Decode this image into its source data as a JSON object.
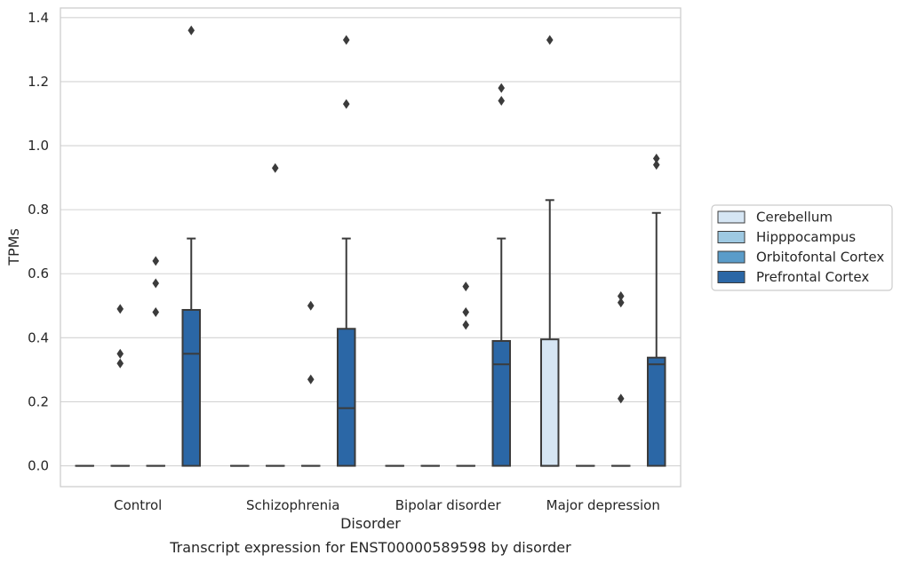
{
  "caption": "Transcript expression for ENST00000589598 by disorder",
  "chart_data": {
    "type": "box",
    "xlabel": "Disorder",
    "ylabel": "TPMs",
    "ylim": [
      -0.065,
      1.43
    ],
    "yticks": [
      "0.0",
      "0.2",
      "0.4",
      "0.6",
      "0.8",
      "1.0",
      "1.2",
      "1.4"
    ],
    "grid": "horizontal",
    "legend_position": "right",
    "categories": [
      "Control",
      "Schizophrenia",
      "Bipolar disorder",
      "Major depression"
    ],
    "series": [
      {
        "name": "Cerebellum",
        "color": "#d6e6f4",
        "boxes": [
          {
            "q1": 0,
            "median": 0,
            "q3": 0,
            "whisker_low": 0,
            "whisker_high": 0,
            "outliers": []
          },
          {
            "q1": 0,
            "median": 0,
            "q3": 0,
            "whisker_low": 0,
            "whisker_high": 0,
            "outliers": []
          },
          {
            "q1": 0,
            "median": 0,
            "q3": 0,
            "whisker_low": 0,
            "whisker_high": 0,
            "outliers": []
          },
          {
            "q1": 0,
            "median": 0,
            "q3": 0.395,
            "whisker_low": 0,
            "whisker_high": 0.83,
            "outliers": [
              1.33
            ]
          }
        ]
      },
      {
        "name": "Hipppocampus",
        "color": "#9ec9e2",
        "boxes": [
          {
            "q1": 0,
            "median": 0,
            "q3": 0,
            "whisker_low": 0,
            "whisker_high": 0,
            "outliers": [
              0.32,
              0.35,
              0.49
            ]
          },
          {
            "q1": 0,
            "median": 0,
            "q3": 0,
            "whisker_low": 0,
            "whisker_high": 0,
            "outliers": [
              0.93
            ]
          },
          {
            "q1": 0,
            "median": 0,
            "q3": 0,
            "whisker_low": 0,
            "whisker_high": 0,
            "outliers": []
          },
          {
            "q1": 0,
            "median": 0,
            "q3": 0,
            "whisker_low": 0,
            "whisker_high": 0,
            "outliers": []
          }
        ]
      },
      {
        "name": "Orbitofontal Cortex",
        "color": "#5a9cc9",
        "boxes": [
          {
            "q1": 0,
            "median": 0,
            "q3": 0,
            "whisker_low": 0,
            "whisker_high": 0,
            "outliers": [
              0.48,
              0.57,
              0.64
            ]
          },
          {
            "q1": 0,
            "median": 0,
            "q3": 0,
            "whisker_low": 0,
            "whisker_high": 0,
            "outliers": [
              0.27,
              0.5
            ]
          },
          {
            "q1": 0,
            "median": 0,
            "q3": 0,
            "whisker_low": 0,
            "whisker_high": 0,
            "outliers": [
              0.44,
              0.48,
              0.56
            ]
          },
          {
            "q1": 0,
            "median": 0,
            "q3": 0,
            "whisker_low": 0,
            "whisker_high": 0,
            "outliers": [
              0.51,
              0.21,
              0.53
            ]
          }
        ]
      },
      {
        "name": "Prefrontal Cortex",
        "color": "#2b67a6",
        "boxes": [
          {
            "q1": 0,
            "median": 0.35,
            "q3": 0.487,
            "whisker_low": 0,
            "whisker_high": 0.71,
            "outliers": [
              1.36
            ]
          },
          {
            "q1": 0,
            "median": 0.18,
            "q3": 0.428,
            "whisker_low": 0,
            "whisker_high": 0.71,
            "outliers": [
              1.13,
              1.33
            ]
          },
          {
            "q1": 0,
            "median": 0.317,
            "q3": 0.39,
            "whisker_low": 0,
            "whisker_high": 0.71,
            "outliers": [
              1.14,
              1.18
            ]
          },
          {
            "q1": 0,
            "median": 0.317,
            "q3": 0.338,
            "whisker_low": 0,
            "whisker_high": 0.79,
            "outliers": [
              0.94,
              0.96
            ]
          }
        ]
      }
    ]
  }
}
